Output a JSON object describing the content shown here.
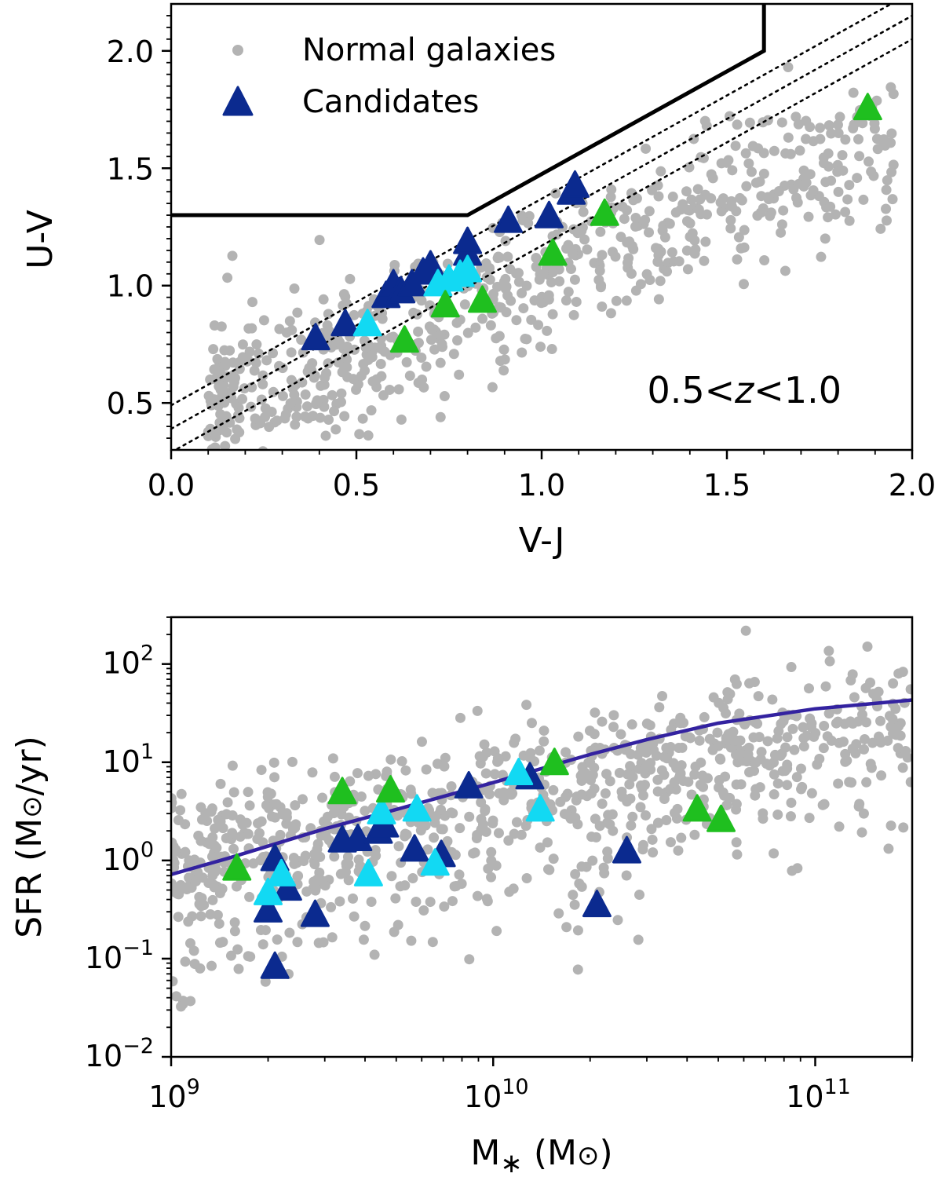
{
  "colors": {
    "normal": "#b3b3b3",
    "dark_blue": "#0b2a8f",
    "cyan": "#12d9f3",
    "green": "#1fbf1f",
    "fit_curve": "#3322a0",
    "boundary": "#000000"
  },
  "chart_data": [
    {
      "type": "scatter",
      "title": "",
      "xlabel": "V-J",
      "ylabel": "U-V",
      "xlim": [
        0.0,
        2.0
      ],
      "ylim": [
        0.3,
        2.2
      ],
      "xticks": [
        0.0,
        0.5,
        1.0,
        1.5,
        2.0
      ],
      "xtick_labels": [
        "0.0",
        "0.5",
        "1.0",
        "1.5",
        "2.0"
      ],
      "yticks": [
        0.5,
        1.0,
        1.5,
        2.0
      ],
      "ytick_labels": [
        "0.5",
        "1.0",
        "1.5",
        "2.0"
      ],
      "annotation": {
        "pre": "0.5<",
        "italic": "z",
        "post": "<1.0"
      },
      "legend": {
        "position": "top-left",
        "entries": [
          {
            "label": "Normal galaxies",
            "marker": "circle",
            "color": "#b3b3b3"
          },
          {
            "label": "Candidates",
            "marker": "triangle",
            "color": "#0b2a8f"
          }
        ]
      },
      "boundary": [
        [
          0.0,
          1.3
        ],
        [
          0.8,
          1.3
        ],
        [
          1.6,
          2.0
        ],
        [
          1.6,
          2.2
        ]
      ],
      "dotted_lines": [
        {
          "slope": 0.88,
          "intercept": 0.49
        },
        {
          "slope": 0.88,
          "intercept": 0.39
        },
        {
          "slope": 0.88,
          "intercept": 0.29
        }
      ],
      "series": [
        {
          "name": "Normal galaxies",
          "marker": "circle",
          "color": "#b3b3b3",
          "generated_points": {
            "count": 700,
            "seed": 11,
            "x_range": [
              0.1,
              1.95
            ],
            "slope": 0.62,
            "intercept": 0.42,
            "scatter": 0.17
          }
        },
        {
          "name": "Candidates",
          "marker": "triangle",
          "color": "#0b2a8f",
          "points": [
            [
              0.39,
              0.77
            ],
            [
              0.47,
              0.83
            ],
            [
              0.58,
              0.95
            ],
            [
              0.6,
              1.0
            ],
            [
              0.62,
              0.97
            ],
            [
              0.65,
              1.0
            ],
            [
              0.68,
              1.05
            ],
            [
              0.7,
              1.08
            ],
            [
              0.8,
              1.13
            ],
            [
              0.8,
              1.18
            ],
            [
              0.91,
              1.27
            ],
            [
              1.02,
              1.29
            ],
            [
              1.08,
              1.39
            ],
            [
              1.09,
              1.42
            ]
          ]
        },
        {
          "marker": "triangle",
          "color": "#12d9f3",
          "points": [
            [
              0.53,
              0.83
            ],
            [
              0.72,
              1.0
            ],
            [
              0.75,
              1.02
            ],
            [
              0.78,
              1.04
            ],
            [
              0.8,
              1.06
            ]
          ]
        },
        {
          "marker": "triangle",
          "color": "#1fbf1f",
          "points": [
            [
              0.63,
              0.76
            ],
            [
              0.74,
              0.91
            ],
            [
              0.84,
              0.93
            ],
            [
              1.03,
              1.13
            ],
            [
              1.17,
              1.3
            ],
            [
              1.88,
              1.75
            ]
          ]
        }
      ]
    },
    {
      "type": "scatter",
      "title": "",
      "xlabel": "M* (M⊙)",
      "ylabel": "SFR (M⊙/yr)",
      "xscale": "log",
      "yscale": "log",
      "xlim": [
        1000000000.0,
        200000000000.0
      ],
      "ylim": [
        0.01,
        300
      ],
      "xticks": [
        1000000000.0,
        10000000000.0,
        100000000000.0
      ],
      "xtick_labels": [
        {
          "base": "10",
          "exp": "9"
        },
        {
          "base": "10",
          "exp": "10"
        },
        {
          "base": "10",
          "exp": "11"
        }
      ],
      "yticks": [
        0.01,
        0.1,
        1,
        10,
        100
      ],
      "ytick_labels": [
        {
          "base": "10",
          "exp": "−2"
        },
        {
          "base": "10",
          "exp": "−1"
        },
        {
          "base": "10",
          "exp": "0"
        },
        {
          "base": "10",
          "exp": "1"
        },
        {
          "base": "10",
          "exp": "2"
        }
      ],
      "fit_line": {
        "color": "#3322a0",
        "points": [
          [
            1000000000.0,
            0.72
          ],
          [
            1500000000.0,
            1.05
          ],
          [
            2000000000.0,
            1.4
          ],
          [
            3000000000.0,
            2.1
          ],
          [
            5000000000.0,
            3.3
          ],
          [
            10000000000.0,
            6.2
          ],
          [
            20000000000.0,
            12
          ],
          [
            30000000000.0,
            17
          ],
          [
            50000000000.0,
            25
          ],
          [
            100000000000.0,
            35
          ],
          [
            200000000000.0,
            43
          ]
        ]
      },
      "series": [
        {
          "name": "Normal galaxies",
          "marker": "circle",
          "color": "#b3b3b3",
          "generated_points": {
            "count": 900,
            "seed": 23,
            "logx_range": [
              9.0,
              11.3
            ],
            "slope": 0.65,
            "intercept": -5.9,
            "scatter": 0.36
          }
        },
        {
          "name": "Candidates",
          "marker": "triangle",
          "color": "#0b2a8f",
          "points": [
            [
              2100000000.0,
              1.0
            ],
            [
              2300000000.0,
              0.5
            ],
            [
              2000000000.0,
              0.3
            ],
            [
              2100000000.0,
              0.08
            ],
            [
              2800000000.0,
              0.27
            ],
            [
              3400000000.0,
              1.55
            ],
            [
              3800000000.0,
              1.6
            ],
            [
              4400000000.0,
              1.9
            ],
            [
              4600000000.0,
              2.2
            ],
            [
              5700000000.0,
              1.25
            ],
            [
              6900000000.0,
              1.1
            ],
            [
              8400000000.0,
              5.5
            ],
            [
              13000000000.0,
              6.8
            ],
            [
              21000000000.0,
              0.34
            ],
            [
              26000000000.0,
              1.2
            ]
          ]
        },
        {
          "marker": "triangle",
          "color": "#12d9f3",
          "points": [
            [
              2000000000.0,
              0.45
            ],
            [
              2200000000.0,
              0.7
            ],
            [
              4100000000.0,
              0.7
            ],
            [
              4500000000.0,
              3.0
            ],
            [
              5800000000.0,
              3.2
            ],
            [
              6600000000.0,
              0.9
            ],
            [
              12000000000.0,
              7.5
            ],
            [
              14000000000.0,
              3.2
            ]
          ]
        },
        {
          "marker": "triangle",
          "color": "#1fbf1f",
          "points": [
            [
              1600000000.0,
              0.8
            ],
            [
              3400000000.0,
              4.8
            ],
            [
              4800000000.0,
              5.0
            ],
            [
              15500000000.0,
              9.5
            ],
            [
              43000000000.0,
              3.2
            ],
            [
              51000000000.0,
              2.5
            ]
          ]
        }
      ]
    }
  ]
}
